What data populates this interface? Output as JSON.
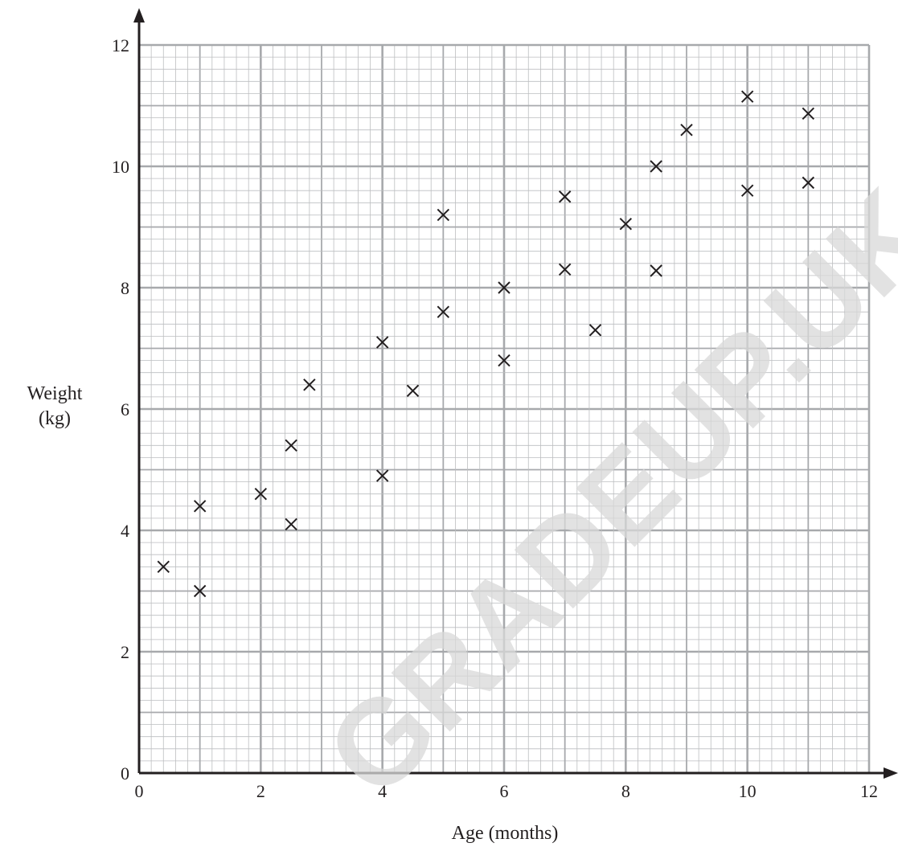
{
  "chart_data": {
    "type": "scatter",
    "title": "",
    "xlabel": "Age (months)",
    "ylabel_lines": [
      "Weight",
      "(kg)"
    ],
    "xlim": [
      0,
      12
    ],
    "ylim": [
      0,
      12
    ],
    "x_ticks": [
      "0",
      "2",
      "4",
      "6",
      "8",
      "10",
      "12"
    ],
    "y_ticks": [
      "0",
      "2",
      "4",
      "6",
      "8",
      "10",
      "12"
    ],
    "grid": true,
    "marker": "x",
    "points": [
      {
        "x": 0.4,
        "y": 3.4
      },
      {
        "x": 1,
        "y": 4.4
      },
      {
        "x": 1,
        "y": 3.0
      },
      {
        "x": 2,
        "y": 4.6
      },
      {
        "x": 2.5,
        "y": 5.4
      },
      {
        "x": 2.5,
        "y": 4.1
      },
      {
        "x": 2.8,
        "y": 6.4
      },
      {
        "x": 4,
        "y": 7.1
      },
      {
        "x": 4,
        "y": 4.9
      },
      {
        "x": 4.5,
        "y": 6.3
      },
      {
        "x": 5,
        "y": 9.2
      },
      {
        "x": 5,
        "y": 7.6
      },
      {
        "x": 6,
        "y": 8.0
      },
      {
        "x": 6,
        "y": 6.8
      },
      {
        "x": 7,
        "y": 9.5
      },
      {
        "x": 7,
        "y": 8.3
      },
      {
        "x": 7.5,
        "y": 7.3
      },
      {
        "x": 8,
        "y": 9.05
      },
      {
        "x": 8.5,
        "y": 10.0
      },
      {
        "x": 8.5,
        "y": 8.28
      },
      {
        "x": 9,
        "y": 10.6
      },
      {
        "x": 10,
        "y": 11.15
      },
      {
        "x": 10,
        "y": 9.6
      },
      {
        "x": 11,
        "y": 10.87
      },
      {
        "x": 11,
        "y": 9.73
      }
    ],
    "watermark": "GRADEUP.UK"
  },
  "colors": {
    "axis": "#231f20",
    "grid_minor": "#bcbec0",
    "grid_major": "#a7a9ac",
    "marker": "#231f20"
  }
}
